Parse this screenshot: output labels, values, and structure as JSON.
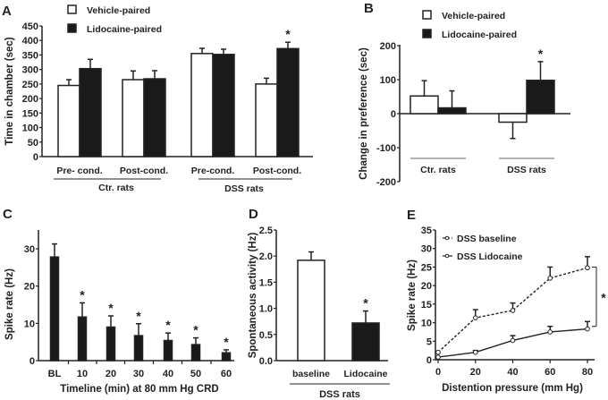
{
  "chart_data": [
    {
      "panel": "A",
      "type": "bar",
      "ylabel": "Time in chamber (sec)",
      "ylim": [
        0,
        450
      ],
      "yticks": [
        0,
        50,
        100,
        150,
        200,
        250,
        300,
        350,
        400,
        450
      ],
      "categories": [
        "Pre- cond.",
        "Post-cond.",
        "Pre-cond.",
        "Post-cond."
      ],
      "groups": [
        {
          "label": "Ctr. rats",
          "categories": [
            0,
            1
          ]
        },
        {
          "label": "DSS rats",
          "categories": [
            2,
            3
          ]
        }
      ],
      "series": [
        {
          "name": "Vehicle-paired",
          "color": "#ffffff",
          "values": [
            245,
            265,
            355,
            250
          ],
          "errors": [
            20,
            30,
            18,
            20
          ]
        },
        {
          "name": "Lidocaine-paired",
          "color": "#1a1a1a",
          "values": [
            303,
            268,
            352,
            372
          ],
          "errors": [
            32,
            28,
            18,
            22
          ]
        }
      ],
      "significance": [
        {
          "category": 3,
          "series": 1,
          "label": "*"
        }
      ],
      "legend": "top-left"
    },
    {
      "panel": "B",
      "type": "bar",
      "ylabel": "Change in preference (sec)",
      "ylim": [
        -200,
        200
      ],
      "yticks": [
        200,
        100,
        0,
        -100,
        -200
      ],
      "categories": [
        "Ctr. rats",
        "DSS rats"
      ],
      "series": [
        {
          "name": "Vehicle-paired",
          "color": "#ffffff",
          "values": [
            52,
            -25
          ],
          "errors": [
            45,
            48
          ]
        },
        {
          "name": "Lidocaine-paired",
          "color": "#1a1a1a",
          "values": [
            17,
            98
          ],
          "errors": [
            50,
            55
          ]
        }
      ],
      "significance": [
        {
          "category": 1,
          "series": 1,
          "label": "*"
        }
      ],
      "legend": "top"
    },
    {
      "panel": "C",
      "type": "bar",
      "ylabel": "Spike rate (Hz)",
      "xlabel": "Timeline (min) at 80 mm Hg CRD",
      "ylim": [
        0,
        35
      ],
      "yticks": [
        0,
        10,
        20,
        30
      ],
      "categories": [
        "BL",
        "10",
        "20",
        "30",
        "40",
        "50",
        "60"
      ],
      "values": [
        27.8,
        11.7,
        9.0,
        6.7,
        5.4,
        4.3,
        2.1
      ],
      "errors": [
        3.5,
        3.8,
        3.0,
        3.2,
        2.0,
        1.8,
        0.8
      ],
      "significance": [
        "",
        "*",
        "*",
        "*",
        "*",
        "*",
        "*"
      ]
    },
    {
      "panel": "D",
      "type": "bar",
      "ylabel": "Spontaneous activity (Hz)",
      "group_label": "DSS rats",
      "ylim": [
        0,
        2.5
      ],
      "yticks": [
        "0.0",
        "0.5",
        "1.0",
        "1.5",
        "2.0",
        "2.5"
      ],
      "categories": [
        "baseline",
        "Lidocaine"
      ],
      "values": [
        1.92,
        0.72
      ],
      "errors": [
        0.16,
        0.23
      ],
      "colors": [
        "#ffffff",
        "#1a1a1a"
      ],
      "significance": [
        "",
        "*"
      ]
    },
    {
      "panel": "E",
      "type": "line",
      "ylabel": "Spike rate (Hz)",
      "xlabel": "Distention pressure (mm Hg)",
      "ylim": [
        0,
        35
      ],
      "yticks": [
        0,
        5,
        10,
        15,
        20,
        25,
        30,
        35
      ],
      "xlim": [
        0,
        80
      ],
      "xticks": [
        0,
        20,
        40,
        60,
        80
      ],
      "x": [
        0,
        20,
        40,
        60,
        80
      ],
      "series": [
        {
          "name": "DSS baseline",
          "style": "dashed",
          "values": [
            2.0,
            11.3,
            13.3,
            22.0,
            24.8
          ],
          "errors": [
            0.3,
            2.2,
            2.0,
            3.0,
            3.0
          ]
        },
        {
          "name": "DSS Lidocaine",
          "style": "solid",
          "values": [
            0.7,
            2.0,
            5.2,
            7.5,
            8.3
          ],
          "errors": [
            0.3,
            0.5,
            1.3,
            1.5,
            2.0
          ]
        }
      ],
      "significance": {
        "label": "*",
        "between": "series"
      },
      "legend": "top-left"
    }
  ]
}
